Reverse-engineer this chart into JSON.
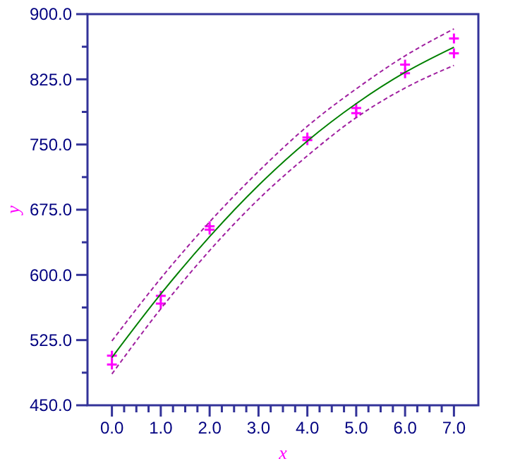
{
  "chart_data": {
    "type": "scatter",
    "xlabel": "x",
    "ylabel": "y",
    "xlim": [
      -0.5,
      7.5
    ],
    "ylim": [
      450,
      900
    ],
    "xticks": [
      {
        "value": 0,
        "label": "0.0"
      },
      {
        "value": 0.25,
        "label": null
      },
      {
        "value": 0.5,
        "label": null
      },
      {
        "value": 0.75,
        "label": null
      },
      {
        "value": 1,
        "label": "1.0"
      },
      {
        "value": 1.25,
        "label": null
      },
      {
        "value": 1.5,
        "label": null
      },
      {
        "value": 1.75,
        "label": null
      },
      {
        "value": 2,
        "label": "2.0"
      },
      {
        "value": 2.25,
        "label": null
      },
      {
        "value": 2.5,
        "label": null
      },
      {
        "value": 2.75,
        "label": null
      },
      {
        "value": 3,
        "label": "3.0"
      },
      {
        "value": 3.25,
        "label": null
      },
      {
        "value": 3.5,
        "label": null
      },
      {
        "value": 3.75,
        "label": null
      },
      {
        "value": 4,
        "label": "4.0"
      },
      {
        "value": 4.25,
        "label": null
      },
      {
        "value": 4.5,
        "label": null
      },
      {
        "value": 4.75,
        "label": null
      },
      {
        "value": 5,
        "label": "5.0"
      },
      {
        "value": 5.25,
        "label": null
      },
      {
        "value": 5.5,
        "label": null
      },
      {
        "value": 5.75,
        "label": null
      },
      {
        "value": 6,
        "label": "6.0"
      },
      {
        "value": 6.25,
        "label": null
      },
      {
        "value": 6.5,
        "label": null
      },
      {
        "value": 6.75,
        "label": null
      },
      {
        "value": 7,
        "label": "7.0"
      }
    ],
    "yticks": [
      {
        "value": 450,
        "label": "450.0"
      },
      {
        "value": 487.5,
        "label": null
      },
      {
        "value": 525,
        "label": "525.0"
      },
      {
        "value": 562.5,
        "label": null
      },
      {
        "value": 600,
        "label": "600.0"
      },
      {
        "value": 637.5,
        "label": null
      },
      {
        "value": 675,
        "label": "675.0"
      },
      {
        "value": 712.5,
        "label": null
      },
      {
        "value": 750,
        "label": "750.0"
      },
      {
        "value": 787.5,
        "label": null
      },
      {
        "value": 825,
        "label": "825.0"
      },
      {
        "value": 862.5,
        "label": null
      },
      {
        "value": 900,
        "label": "900.0"
      }
    ],
    "grid": false,
    "series": [
      {
        "marker": "cross",
        "color": "#ff00ff",
        "x": [
          0,
          0,
          1,
          1,
          2,
          2,
          4,
          4,
          5,
          5,
          6,
          6,
          7,
          7
        ],
        "values": [
          507,
          497,
          576,
          567,
          656,
          652,
          758,
          755,
          792,
          786,
          842,
          832,
          872,
          855
        ]
      },
      {
        "type": "line",
        "line_style": "solid",
        "marker": "none",
        "color": "#008000",
        "x": [
          0,
          1,
          2,
          3,
          4,
          5,
          6,
          7
        ],
        "values": [
          505,
          578,
          644,
          703,
          754,
          797,
          833,
          862
        ]
      },
      {
        "type": "line",
        "line_style": "dashed",
        "marker": "none",
        "color": "#a020a0",
        "x": [
          0,
          1,
          2,
          3,
          4,
          5,
          6,
          7
        ],
        "values": [
          524,
          596,
          661,
          719,
          771,
          814,
          852,
          883
        ]
      },
      {
        "type": "line",
        "line_style": "dashed",
        "marker": "none",
        "color": "#a020a0",
        "x": [
          0,
          1,
          2,
          3,
          4,
          5,
          6,
          7
        ],
        "values": [
          486,
          561,
          628,
          687,
          737,
          781,
          815,
          841
        ]
      }
    ]
  }
}
